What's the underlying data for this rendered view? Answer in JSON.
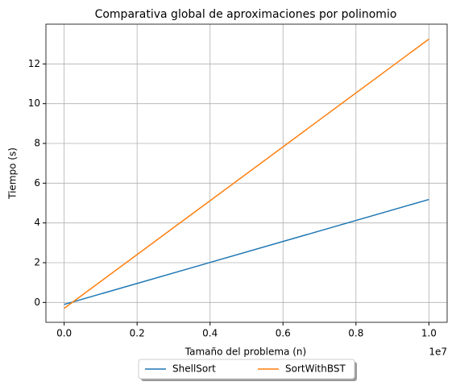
{
  "chart_data": {
    "type": "line",
    "title": "Comparativa global de aproximaciones por polinomio",
    "x_label": "Tamaño del problema (n)",
    "y_label": "Tiempo (s)",
    "x_offset_label": "1e7",
    "x": [
      0,
      10000000
    ],
    "series": [
      {
        "name": "ShellSort",
        "color": "#1f77b4",
        "values": [
          -0.1,
          5.18
        ]
      },
      {
        "name": "SortWithBST",
        "color": "#ff7f0e",
        "values": [
          -0.3,
          13.25
        ]
      }
    ],
    "xlim": [
      -500000,
      10500000
    ],
    "xticks": [
      {
        "value": 0,
        "label": "0.0"
      },
      {
        "value": 2000000,
        "label": "0.2"
      },
      {
        "value": 4000000,
        "label": "0.4"
      },
      {
        "value": 6000000,
        "label": "0.6"
      },
      {
        "value": 8000000,
        "label": "0.8"
      },
      {
        "value": 10000000,
        "label": "1.0"
      }
    ],
    "ylim": [
      -1,
      14
    ],
    "yticks": [
      0,
      2,
      4,
      6,
      8,
      10,
      12
    ],
    "grid": true,
    "legend": "lower center"
  }
}
